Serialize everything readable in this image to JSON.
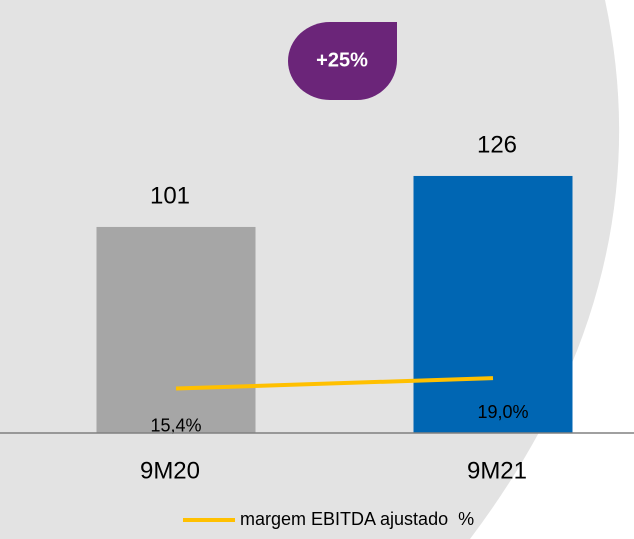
{
  "chart_data": {
    "type": "bar",
    "annotation": "+25%",
    "categories": [
      "9M20",
      "9M21"
    ],
    "series": [
      {
        "values": [
          101,
          126
        ],
        "colors": [
          "#a6a6a6",
          "#0066b3"
        ]
      },
      {
        "name": "margem EBITDA ajustado  %",
        "type": "line",
        "axis": "y2",
        "color": "#ffc000",
        "values": [
          15.4,
          19.0
        ],
        "value_labels": [
          "15,4%",
          "19,0%"
        ]
      }
    ],
    "ylim": [
      0,
      150
    ],
    "y2lim": [
      0,
      106
    ]
  }
}
